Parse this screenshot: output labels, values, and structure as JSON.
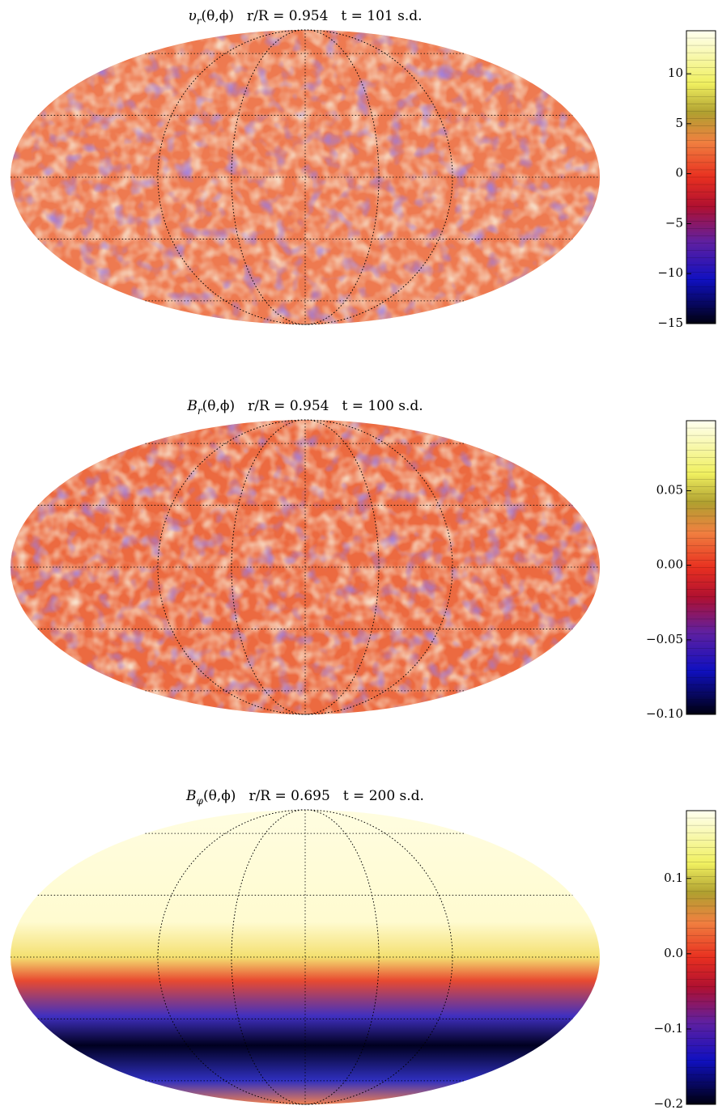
{
  "chart_data": [
    {
      "type": "map",
      "variable": "υ",
      "subscript": "r",
      "args": "(θ,ϕ)",
      "radius_label": "r/R = 0.954",
      "time_label": "t =  101 s.d.",
      "ylim": [
        -15,
        14.3
      ],
      "yticks": [
        {
          "value": -15,
          "label": "−15"
        },
        {
          "value": -10,
          "label": "−10"
        },
        {
          "value": -5,
          "label": "−5"
        },
        0,
        5,
        10
      ]
    },
    {
      "type": "map",
      "variable": "B",
      "subscript": "r",
      "args": "(θ,ϕ)",
      "radius_label": "r/R = 0.954",
      "time_label": "t =  100 s.d.",
      "ylim": [
        -0.1,
        0.097
      ],
      "yticks": [
        {
          "value": -0.1,
          "label": "−0.10"
        },
        {
          "value": -0.05,
          "label": "−0.05"
        },
        {
          "value": 0,
          "label": "0.00"
        },
        0.05
      ]
    },
    {
      "type": "map",
      "variable": "B",
      "subscript": "φ",
      "args": "(θ,ϕ)",
      "radius_label": "r/R = 0.695",
      "time_label": "t =  200 s.d.",
      "ylim": [
        -0.2,
        0.19
      ],
      "yticks": [
        {
          "value": -0.2,
          "label": "−0.2"
        },
        {
          "value": -0.1,
          "label": "−0.1"
        },
        {
          "value": 0,
          "label": "0.0"
        },
        0.1
      ]
    }
  ]
}
